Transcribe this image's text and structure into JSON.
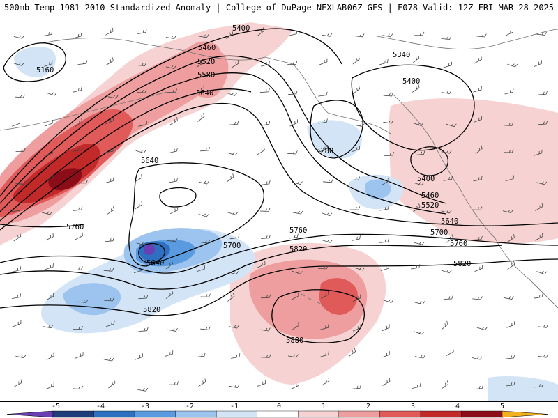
{
  "header": {
    "left": "500mb Temp 1981-2010 Standardized Anomaly | College of DuPage NEXLAB",
    "right": "06Z GFS | F078 Valid: 12Z FRI MAR 28 2025"
  },
  "colors": {
    "background": "#ffffff",
    "coast": "#707070",
    "contour": "#000000",
    "barb": "#444444"
  },
  "anomaly_scale": {
    "ticks": [
      "-5",
      "-4",
      "-3",
      "-2",
      "-1",
      "0",
      "1",
      "2",
      "3",
      "4",
      "5"
    ],
    "colors": [
      "#6a3fb5",
      "#1f3d7a",
      "#2f6fbf",
      "#5a9be0",
      "#9cc4ee",
      "#d2e4f6",
      "#ffffff",
      "#f7d2d2",
      "#ee9e9e",
      "#e05a5a",
      "#c22a2a",
      "#8c0c18",
      "#f0b020"
    ]
  },
  "height_labels": [
    {
      "id": "5400-n",
      "text": "5400"
    },
    {
      "id": "5460-n",
      "text": "5460"
    },
    {
      "id": "5520-n",
      "text": "5520"
    },
    {
      "id": "5580",
      "text": "5580"
    },
    {
      "id": "5640-n",
      "text": "5640"
    },
    {
      "id": "5160",
      "text": "5160"
    },
    {
      "id": "5340",
      "text": "5340"
    },
    {
      "id": "5400-ne",
      "text": "5400"
    },
    {
      "id": "5280",
      "text": "5280"
    },
    {
      "id": "5400-e",
      "text": "5400"
    },
    {
      "id": "5460-e",
      "text": "5460"
    },
    {
      "id": "5520-e",
      "text": "5520"
    },
    {
      "id": "5640-w",
      "text": "5640"
    },
    {
      "id": "5640-e",
      "text": "5640"
    },
    {
      "id": "5700-e",
      "text": "5700"
    },
    {
      "id": "5760-e",
      "text": "5760"
    },
    {
      "id": "5760-c",
      "text": "5760"
    },
    {
      "id": "5760-w",
      "text": "5760"
    },
    {
      "id": "5700-c",
      "text": "5700"
    },
    {
      "id": "5640-low",
      "text": "5640"
    },
    {
      "id": "5820-c",
      "text": "5820"
    },
    {
      "id": "5820-e",
      "text": "5820"
    },
    {
      "id": "5820-s",
      "text": "5820"
    },
    {
      "id": "5880",
      "text": "5880"
    }
  ]
}
